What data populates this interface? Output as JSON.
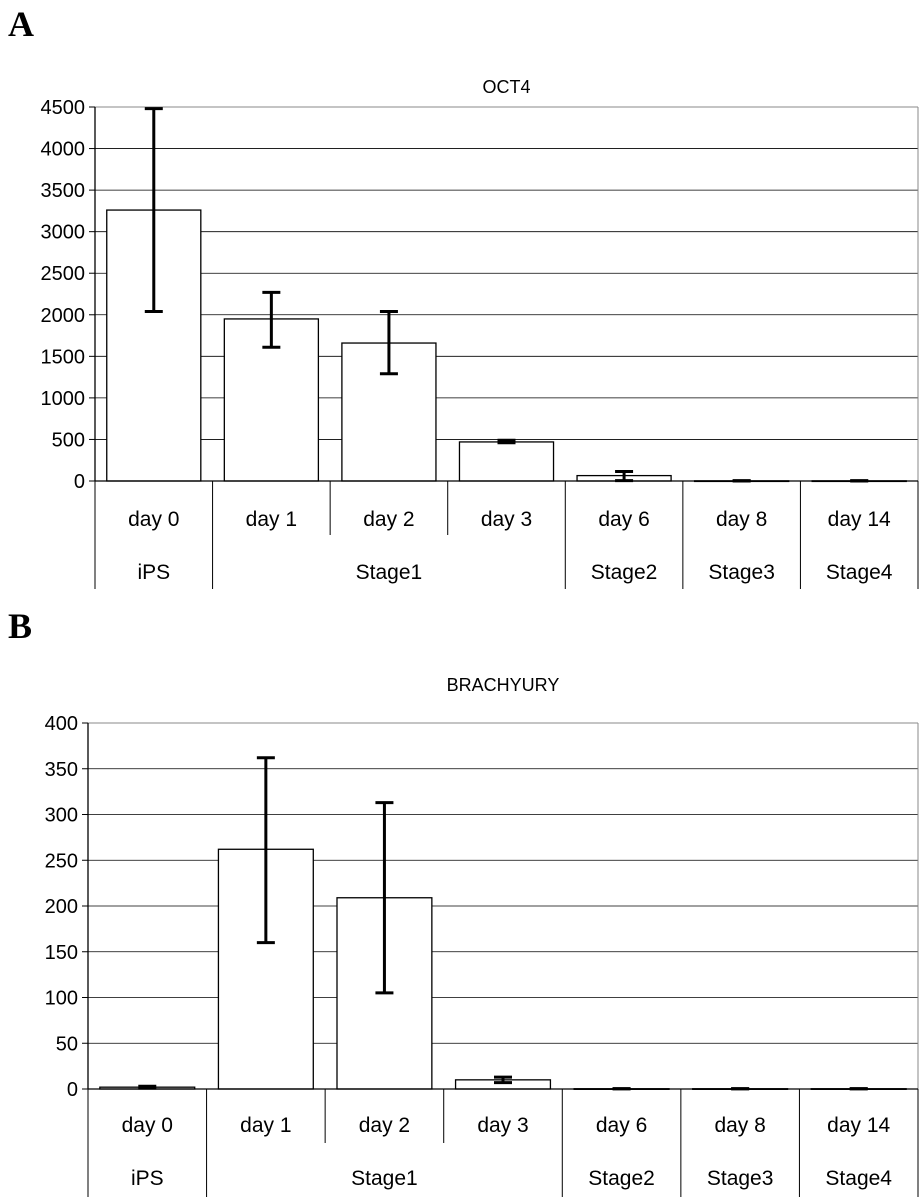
{
  "panels": [
    {
      "letter": "A"
    },
    {
      "letter": "B"
    }
  ],
  "chart_data": [
    {
      "type": "bar",
      "title": "OCT4",
      "xlabel": "",
      "ylabel": "",
      "categories": [
        "day 0",
        "day 1",
        "day 2",
        "day 3",
        "day 6",
        "day 8",
        "day 14"
      ],
      "groups": [
        {
          "label": "iPS",
          "span": 1
        },
        {
          "label": "Stage1",
          "span": 3
        },
        {
          "label": "Stage2",
          "span": 1
        },
        {
          "label": "Stage3",
          "span": 1
        },
        {
          "label": "Stage4",
          "span": 1
        }
      ],
      "values": [
        3260,
        1950,
        1660,
        470,
        65,
        2,
        2
      ],
      "error_low": [
        2040,
        1610,
        1290,
        460,
        5,
        0,
        0
      ],
      "error_high": [
        4480,
        2270,
        2040,
        490,
        115,
        4,
        4
      ],
      "ylim": [
        0,
        4500
      ],
      "yticks": [
        0,
        500,
        1000,
        1500,
        2000,
        2500,
        3000,
        3500,
        4000,
        4500
      ],
      "grid": true,
      "legend": "none"
    },
    {
      "type": "bar",
      "title": "BRACHYURY",
      "xlabel": "",
      "ylabel": "",
      "categories": [
        "day 0",
        "day 1",
        "day 2",
        "day 3",
        "day 6",
        "day 8",
        "day 14"
      ],
      "groups": [
        {
          "label": "iPS",
          "span": 1
        },
        {
          "label": "Stage1",
          "span": 3
        },
        {
          "label": "Stage2",
          "span": 1
        },
        {
          "label": "Stage3",
          "span": 1
        },
        {
          "label": "Stage4",
          "span": 1
        }
      ],
      "values": [
        2,
        262,
        209,
        10,
        0.3,
        0.3,
        0.3
      ],
      "error_low": [
        1,
        160,
        105,
        7,
        0.2,
        0.2,
        0.2
      ],
      "error_high": [
        3,
        362,
        313,
        13,
        0.4,
        0.4,
        0.4
      ],
      "ylim": [
        0,
        400
      ],
      "yticks": [
        0,
        50,
        100,
        150,
        200,
        250,
        300,
        350,
        400
      ],
      "grid": true,
      "legend": "none"
    }
  ]
}
